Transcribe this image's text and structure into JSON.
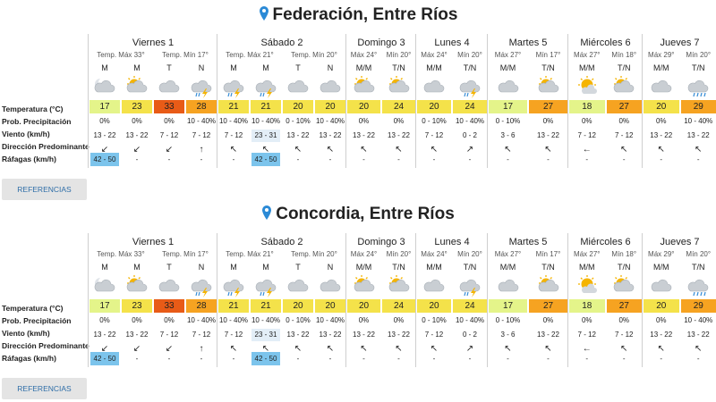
{
  "colors": {
    "temp_yellow": "#f4e24a",
    "temp_orange": "#f6a321",
    "temp_red": "#e85b17",
    "temp_lightgreen": "#e4f48a",
    "wind_highlight": "#e3eef7",
    "gust_highlight": "#7cc4ec",
    "pin": "#2b8ad6",
    "link": "#2f6ea8"
  },
  "row_labels": {
    "temp": "Temperatura (°C)",
    "prec": "Prob. Precipitación",
    "wind": "Viento (km/h)",
    "dir": "Dirección Predominante",
    "gust": "Ráfagas (km/h)"
  },
  "references_label": "REFERENCIAS",
  "panels": [
    {
      "title": "Federación, Entre Ríos",
      "days": [
        {
          "name": "Viernes 1",
          "tmax": "Temp. Máx 33°",
          "tmin": "Temp. Mín 17°",
          "periods": [
            {
              "p": "M",
              "icon": "cloudy-night-icon",
              "temp": "17",
              "tc": "lightgreen",
              "prec": "0%",
              "wind": "13 - 22",
              "dir": "↙",
              "gust": "42 - 50",
              "wh": false,
              "gh": true
            },
            {
              "p": "M",
              "icon": "partly-cloudy-icon",
              "temp": "23",
              "tc": "yellow",
              "prec": "0%",
              "wind": "13 - 22",
              "dir": "↙",
              "gust": "-",
              "wh": false,
              "gh": false
            },
            {
              "p": "T",
              "icon": "cloudy-icon",
              "temp": "33",
              "tc": "red",
              "prec": "0%",
              "wind": "7 - 12",
              "dir": "↙",
              "gust": "-",
              "wh": false,
              "gh": false
            },
            {
              "p": "N",
              "icon": "storm-icon",
              "temp": "28",
              "tc": "orange",
              "prec": "10 - 40%",
              "wind": "7 - 12",
              "dir": "↑",
              "gust": "-",
              "wh": false,
              "gh": false
            }
          ]
        },
        {
          "name": "Sábado 2",
          "tmax": "Temp. Máx 21°",
          "tmin": "Temp. Mín 20°",
          "periods": [
            {
              "p": "M",
              "icon": "storm-icon",
              "temp": "21",
              "tc": "yellow",
              "prec": "10 - 40%",
              "wind": "7 - 12",
              "dir": "↖",
              "gust": "-",
              "wh": false,
              "gh": false
            },
            {
              "p": "M",
              "icon": "storm-icon",
              "temp": "21",
              "tc": "yellow",
              "prec": "10 - 40%",
              "wind": "23 - 31",
              "dir": "↖",
              "gust": "42 - 50",
              "wh": true,
              "gh": true
            },
            {
              "p": "T",
              "icon": "cloudy-icon",
              "temp": "20",
              "tc": "yellow",
              "prec": "0 - 10%",
              "wind": "13 - 22",
              "dir": "↖",
              "gust": "-",
              "wh": false,
              "gh": false
            },
            {
              "p": "N",
              "icon": "cloudy-icon",
              "temp": "20",
              "tc": "yellow",
              "prec": "10 - 40%",
              "wind": "13 - 22",
              "dir": "↖",
              "gust": "-",
              "wh": false,
              "gh": false
            }
          ]
        },
        {
          "name": "Domingo 3",
          "tmax": "Máx 24°",
          "tmin": "Mín 20°",
          "periods": [
            {
              "p": "M/M",
              "icon": "partly-cloudy-icon",
              "temp": "20",
              "tc": "yellow",
              "prec": "0%",
              "wind": "13 - 22",
              "dir": "↖",
              "gust": "-",
              "wh": false,
              "gh": false
            },
            {
              "p": "T/N",
              "icon": "partly-cloudy-icon",
              "temp": "24",
              "tc": "yellow",
              "prec": "0%",
              "wind": "13 - 22",
              "dir": "↖",
              "gust": "-",
              "wh": false,
              "gh": false
            }
          ]
        },
        {
          "name": "Lunes 4",
          "tmax": "Máx 24°",
          "tmin": "Mín 20°",
          "periods": [
            {
              "p": "M/M",
              "icon": "cloudy-icon",
              "temp": "20",
              "tc": "yellow",
              "prec": "0 - 10%",
              "wind": "7 - 12",
              "dir": "↖",
              "gust": "-",
              "wh": false,
              "gh": false
            },
            {
              "p": "T/N",
              "icon": "storm-icon",
              "temp": "24",
              "tc": "yellow",
              "prec": "10 - 40%",
              "wind": "0 - 2",
              "dir": "↗",
              "gust": "-",
              "wh": false,
              "gh": false
            }
          ]
        },
        {
          "name": "Martes 5",
          "tmax": "Máx 27°",
          "tmin": "Mín 17°",
          "periods": [
            {
              "p": "M/M",
              "icon": "cloudy-icon",
              "temp": "17",
              "tc": "lightgreen",
              "prec": "0 - 10%",
              "wind": "3 - 6",
              "dir": "↖",
              "gust": "-",
              "wh": false,
              "gh": false
            },
            {
              "p": "T/N",
              "icon": "partly-cloudy-icon",
              "temp": "27",
              "tc": "orange",
              "prec": "0%",
              "wind": "13 - 22",
              "dir": "↖",
              "gust": "-",
              "wh": false,
              "gh": false
            }
          ]
        },
        {
          "name": "Miércoles 6",
          "tmax": "Máx 27°",
          "tmin": "Mín 18°",
          "periods": [
            {
              "p": "M/M",
              "icon": "sunny-icon",
              "temp": "18",
              "tc": "lightgreen",
              "prec": "0%",
              "wind": "7 - 12",
              "dir": "←",
              "gust": "-",
              "wh": false,
              "gh": false
            },
            {
              "p": "T/N",
              "icon": "partly-cloudy-icon",
              "temp": "27",
              "tc": "orange",
              "prec": "0%",
              "wind": "7 - 12",
              "dir": "↖",
              "gust": "-",
              "wh": false,
              "gh": false
            }
          ]
        },
        {
          "name": "Jueves 7",
          "tmax": "Máx 29°",
          "tmin": "Mín 20°",
          "periods": [
            {
              "p": "M/M",
              "icon": "cloudy-icon",
              "temp": "20",
              "tc": "yellow",
              "prec": "0%",
              "wind": "13 - 22",
              "dir": "↖",
              "gust": "-",
              "wh": false,
              "gh": false
            },
            {
              "p": "T/N",
              "icon": "rain-icon",
              "temp": "29",
              "tc": "orange",
              "prec": "10 - 40%",
              "wind": "13 - 22",
              "dir": "↖",
              "gust": "-",
              "wh": false,
              "gh": false
            }
          ]
        }
      ]
    },
    {
      "title": "Concordia, Entre Ríos",
      "days": [
        {
          "name": "Viernes 1",
          "tmax": "Temp. Máx 33°",
          "tmin": "Temp. Mín 17°",
          "periods": [
            {
              "p": "M",
              "icon": "cloudy-night-icon",
              "temp": "17",
              "tc": "lightgreen",
              "prec": "0%",
              "wind": "13 - 22",
              "dir": "↙",
              "gust": "42 - 50",
              "wh": false,
              "gh": true
            },
            {
              "p": "M",
              "icon": "partly-cloudy-icon",
              "temp": "23",
              "tc": "yellow",
              "prec": "0%",
              "wind": "13 - 22",
              "dir": "↙",
              "gust": "-",
              "wh": false,
              "gh": false
            },
            {
              "p": "T",
              "icon": "cloudy-icon",
              "temp": "33",
              "tc": "red",
              "prec": "0%",
              "wind": "7 - 12",
              "dir": "↙",
              "gust": "-",
              "wh": false,
              "gh": false
            },
            {
              "p": "N",
              "icon": "storm-icon",
              "temp": "28",
              "tc": "orange",
              "prec": "10 - 40%",
              "wind": "7 - 12",
              "dir": "↑",
              "gust": "-",
              "wh": false,
              "gh": false
            }
          ]
        },
        {
          "name": "Sábado 2",
          "tmax": "Temp. Máx 21°",
          "tmin": "Temp. Mín 20°",
          "periods": [
            {
              "p": "M",
              "icon": "storm-icon",
              "temp": "21",
              "tc": "yellow",
              "prec": "10 - 40%",
              "wind": "7 - 12",
              "dir": "↖",
              "gust": "-",
              "wh": false,
              "gh": false
            },
            {
              "p": "M",
              "icon": "storm-icon",
              "temp": "21",
              "tc": "yellow",
              "prec": "10 - 40%",
              "wind": "23 - 31",
              "dir": "↖",
              "gust": "42 - 50",
              "wh": true,
              "gh": true
            },
            {
              "p": "T",
              "icon": "cloudy-icon",
              "temp": "20",
              "tc": "yellow",
              "prec": "0 - 10%",
              "wind": "13 - 22",
              "dir": "↖",
              "gust": "-",
              "wh": false,
              "gh": false
            },
            {
              "p": "N",
              "icon": "cloudy-icon",
              "temp": "20",
              "tc": "yellow",
              "prec": "10 - 40%",
              "wind": "13 - 22",
              "dir": "↖",
              "gust": "-",
              "wh": false,
              "gh": false
            }
          ]
        },
        {
          "name": "Domingo 3",
          "tmax": "Máx 24°",
          "tmin": "Mín 20°",
          "periods": [
            {
              "p": "M/M",
              "icon": "partly-cloudy-icon",
              "temp": "20",
              "tc": "yellow",
              "prec": "0%",
              "wind": "13 - 22",
              "dir": "↖",
              "gust": "-",
              "wh": false,
              "gh": false
            },
            {
              "p": "T/N",
              "icon": "partly-cloudy-icon",
              "temp": "24",
              "tc": "yellow",
              "prec": "0%",
              "wind": "13 - 22",
              "dir": "↖",
              "gust": "-",
              "wh": false,
              "gh": false
            }
          ]
        },
        {
          "name": "Lunes 4",
          "tmax": "Máx 24°",
          "tmin": "Mín 20°",
          "periods": [
            {
              "p": "M/M",
              "icon": "cloudy-icon",
              "temp": "20",
              "tc": "yellow",
              "prec": "0 - 10%",
              "wind": "7 - 12",
              "dir": "↖",
              "gust": "-",
              "wh": false,
              "gh": false
            },
            {
              "p": "T/N",
              "icon": "storm-icon",
              "temp": "24",
              "tc": "yellow",
              "prec": "10 - 40%",
              "wind": "0 - 2",
              "dir": "↗",
              "gust": "-",
              "wh": false,
              "gh": false
            }
          ]
        },
        {
          "name": "Martes 5",
          "tmax": "Máx 27°",
          "tmin": "Mín 17°",
          "periods": [
            {
              "p": "M/M",
              "icon": "cloudy-icon",
              "temp": "17",
              "tc": "lightgreen",
              "prec": "0 - 10%",
              "wind": "3 - 6",
              "dir": "↖",
              "gust": "-",
              "wh": false,
              "gh": false
            },
            {
              "p": "T/N",
              "icon": "partly-cloudy-icon",
              "temp": "27",
              "tc": "orange",
              "prec": "0%",
              "wind": "13 - 22",
              "dir": "↖",
              "gust": "-",
              "wh": false,
              "gh": false
            }
          ]
        },
        {
          "name": "Miércoles 6",
          "tmax": "Máx 27°",
          "tmin": "Mín 18°",
          "periods": [
            {
              "p": "M/M",
              "icon": "sunny-icon",
              "temp": "18",
              "tc": "lightgreen",
              "prec": "0%",
              "wind": "7 - 12",
              "dir": "←",
              "gust": "-",
              "wh": false,
              "gh": false
            },
            {
              "p": "T/N",
              "icon": "partly-cloudy-icon",
              "temp": "27",
              "tc": "orange",
              "prec": "0%",
              "wind": "7 - 12",
              "dir": "↖",
              "gust": "-",
              "wh": false,
              "gh": false
            }
          ]
        },
        {
          "name": "Jueves 7",
          "tmax": "Máx 29°",
          "tmin": "Mín 20°",
          "periods": [
            {
              "p": "M/M",
              "icon": "cloudy-icon",
              "temp": "20",
              "tc": "yellow",
              "prec": "0%",
              "wind": "13 - 22",
              "dir": "↖",
              "gust": "-",
              "wh": false,
              "gh": false
            },
            {
              "p": "T/N",
              "icon": "rain-icon",
              "temp": "29",
              "tc": "orange",
              "prec": "10 - 40%",
              "wind": "13 - 22",
              "dir": "↖",
              "gust": "-",
              "wh": false,
              "gh": false
            }
          ]
        }
      ]
    }
  ]
}
